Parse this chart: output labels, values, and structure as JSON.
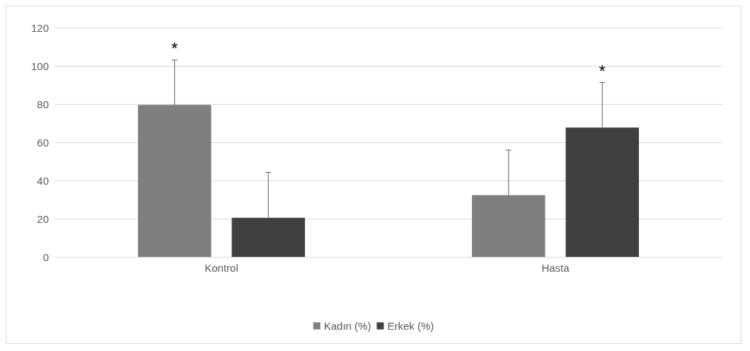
{
  "chart_data": {
    "type": "bar",
    "categories": [
      "Kontrol",
      "Hasta"
    ],
    "series": [
      {
        "name": "Kadın (%)",
        "color": "#7f7f7f",
        "values": [
          79.5,
          32.3
        ],
        "errors": [
          [
            79.5,
            103
          ],
          [
            32.3,
            55.9
          ]
        ]
      },
      {
        "name": "Erkek (%)",
        "color": "#404040",
        "values": [
          20.5,
          67.7
        ],
        "errors": [
          [
            20.5,
            44.2
          ],
          [
            67.7,
            91.3
          ]
        ]
      }
    ],
    "ylim": [
      0,
      120
    ],
    "yticks": [
      0,
      20,
      40,
      60,
      80,
      100,
      120
    ],
    "grid": "y",
    "legend": "bottom",
    "annotations": [
      "*",
      "*"
    ]
  }
}
